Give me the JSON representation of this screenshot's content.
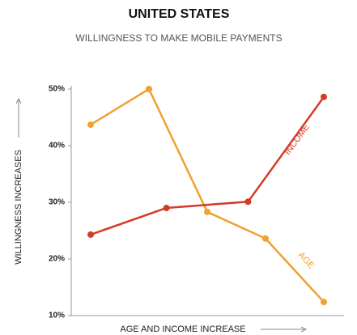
{
  "chart_data": {
    "type": "line",
    "title": "UNITED STATES",
    "subtitle": "WILLINGNESS TO MAKE MOBILE PAYMENTS",
    "y_label": "WILLINGNESS INCREASES",
    "x_label": "AGE AND INCOME INCREASE",
    "xlim": [
      0,
      4
    ],
    "ylim": [
      10,
      50
    ],
    "yticks": [
      {
        "value": 10,
        "label": "10%"
      },
      {
        "value": 20,
        "label": "20%"
      },
      {
        "value": 30,
        "label": "30%"
      },
      {
        "value": 40,
        "label": "40%"
      },
      {
        "value": 50,
        "label": "50%"
      }
    ],
    "series": [
      {
        "name": "AGE",
        "color": "#f0a12e",
        "x": [
          0,
          1,
          2,
          3,
          4
        ],
        "values": [
          43.7,
          50,
          28.3,
          23.6,
          12.4
        ]
      },
      {
        "name": "INCOME",
        "color": "#d33b27",
        "x": [
          0,
          1.3,
          2.7,
          4
        ],
        "values": [
          24.3,
          29,
          30.1,
          48.6
        ]
      }
    ]
  }
}
